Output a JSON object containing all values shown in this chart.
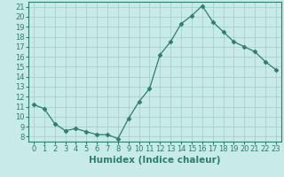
{
  "x": [
    0,
    1,
    2,
    3,
    4,
    5,
    6,
    7,
    8,
    9,
    10,
    11,
    12,
    13,
    14,
    15,
    16,
    17,
    18,
    19,
    20,
    21,
    22,
    23
  ],
  "y": [
    11.2,
    10.8,
    9.3,
    8.6,
    8.8,
    8.5,
    8.2,
    8.2,
    7.8,
    9.8,
    11.5,
    12.8,
    16.2,
    17.5,
    19.3,
    20.1,
    21.1,
    19.5,
    18.5,
    17.5,
    17.0,
    16.5,
    15.5,
    14.7
  ],
  "line_color": "#2e7d6e",
  "marker": "D",
  "marker_size": 2.5,
  "bg_color": "#c8eae8",
  "grid_color": "#a0ccc8",
  "xlabel": "Humidex (Indice chaleur)",
  "xlim": [
    -0.5,
    23.5
  ],
  "ylim": [
    7.5,
    21.5
  ],
  "yticks": [
    8,
    9,
    10,
    11,
    12,
    13,
    14,
    15,
    16,
    17,
    18,
    19,
    20,
    21
  ],
  "xticks": [
    0,
    1,
    2,
    3,
    4,
    5,
    6,
    7,
    8,
    9,
    10,
    11,
    12,
    13,
    14,
    15,
    16,
    17,
    18,
    19,
    20,
    21,
    22,
    23
  ],
  "tick_fontsize": 6.0,
  "xlabel_fontsize": 7.5
}
